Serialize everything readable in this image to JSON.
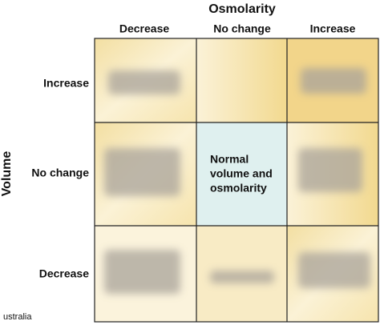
{
  "header": {
    "title": "Osmolarity"
  },
  "columns": [
    "Decrease",
    "No change",
    "Increase"
  ],
  "rows": [
    "Increase",
    "No change",
    "Decrease"
  ],
  "row_axis_label": "Volume",
  "center_cell": {
    "lines": [
      "Normal",
      "volume and",
      "osmolarity"
    ]
  },
  "footer": {
    "text": "ustralia"
  }
}
